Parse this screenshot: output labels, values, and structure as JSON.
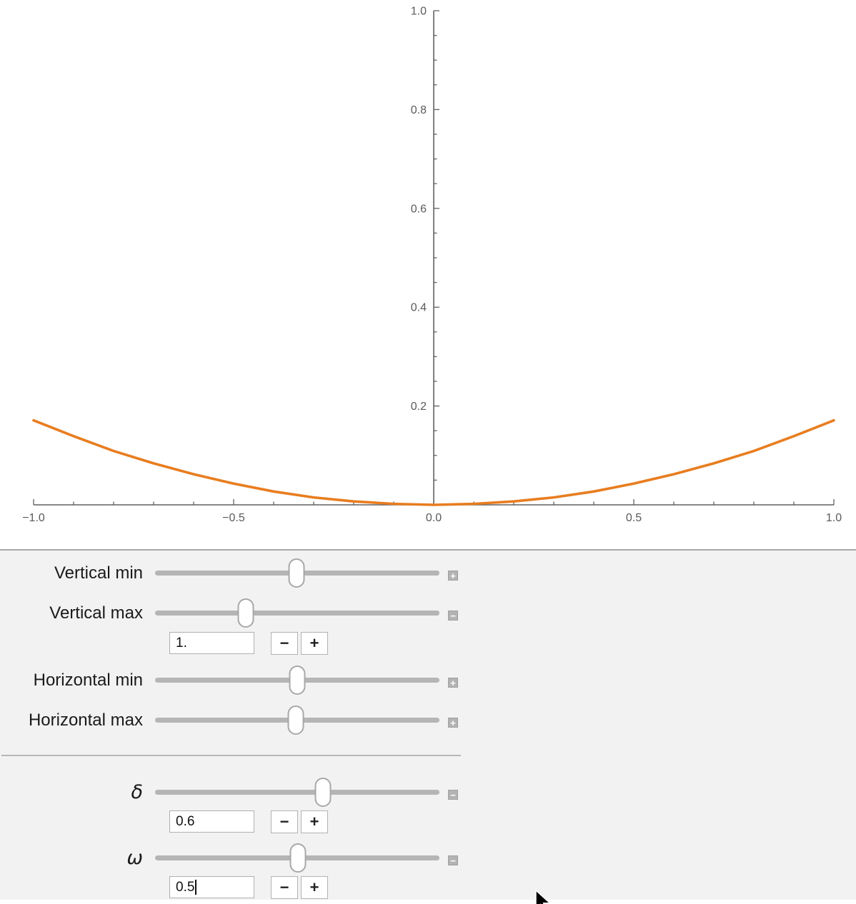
{
  "chart_data": {
    "type": "line",
    "title": "",
    "xlabel": "",
    "ylabel": "",
    "xlim": [
      -1.0,
      1.0
    ],
    "ylim": [
      0.0,
      1.0
    ],
    "grid": false,
    "legend": null,
    "axis_color": "#606060",
    "tick_label_color": "#5a5a5a",
    "x_major_ticks": [
      -1.0,
      -0.5,
      0.0,
      0.5,
      1.0
    ],
    "x_major_labels": [
      "−1.0",
      "−0.5",
      "0.0",
      "0.5",
      "1.0"
    ],
    "x_minor_step": 0.1,
    "y_major_ticks": [
      0.2,
      0.4,
      0.6,
      0.8,
      1.0
    ],
    "y_major_labels": [
      "0.2",
      "0.4",
      "0.6",
      "0.8",
      "1.0"
    ],
    "y_minor_step": 0.05,
    "series": [
      {
        "name": "plotted-curve",
        "color": "#e87d20",
        "width": 3.6,
        "description": "shallow symmetric curve, minimum 0 at x=0, ~0.17 at x=±1",
        "x": [
          -1.0,
          -0.9,
          -0.8,
          -0.7,
          -0.6,
          -0.5,
          -0.4,
          -0.3,
          -0.2,
          -0.1,
          0.0,
          0.1,
          0.2,
          0.3,
          0.4,
          0.5,
          0.6,
          0.7,
          0.8,
          0.9,
          1.0
        ],
        "y": [
          0.171,
          0.139,
          0.109,
          0.084,
          0.062,
          0.043,
          0.027,
          0.015,
          0.007,
          0.002,
          0.0,
          0.002,
          0.007,
          0.015,
          0.027,
          0.043,
          0.062,
          0.084,
          0.109,
          0.139,
          0.171
        ]
      }
    ]
  },
  "panel": {
    "controls": [
      {
        "label": "Vertical min",
        "thumb_pos": 0.497,
        "toggle_glyph": "+",
        "expanded": false
      },
      {
        "label": "Vertical max",
        "thumb_pos": 0.319,
        "toggle_glyph": "−",
        "expanded": true,
        "value": "1."
      },
      {
        "label": "Horizontal min",
        "thumb_pos": 0.5,
        "toggle_glyph": "+",
        "expanded": false
      },
      {
        "label": "Horizontal max",
        "thumb_pos": 0.495,
        "toggle_glyph": "+",
        "expanded": false
      },
      {
        "label": "δ",
        "thumb_pos": 0.59,
        "toggle_glyph": "−",
        "expanded": true,
        "value": "0.6"
      },
      {
        "label": "ω",
        "thumb_pos": 0.503,
        "toggle_glyph": "−",
        "expanded": true,
        "value": "0.5"
      }
    ],
    "stepper_minus": "−",
    "stepper_plus": "+"
  }
}
